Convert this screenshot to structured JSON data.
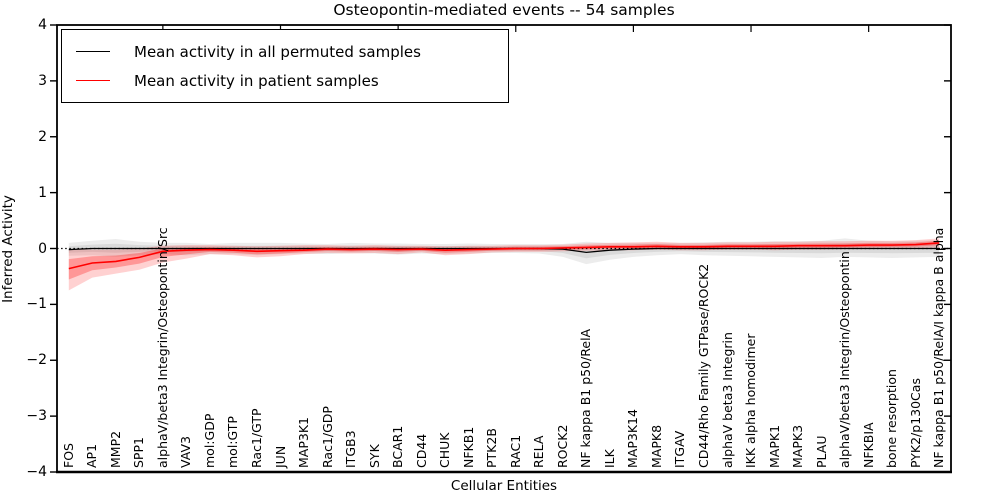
{
  "chart_data": {
    "type": "line",
    "title": "Osteopontin-mediated events -- 54 samples",
    "xlabel": "Cellular Entities",
    "ylabel": "Inferred Activity",
    "ylim": [
      -4,
      4
    ],
    "ytick_labels": [
      "4",
      "3",
      "2",
      "1",
      "0",
      "−1",
      "−2",
      "−3",
      "−4"
    ],
    "yticks": [
      4,
      3,
      2,
      1,
      0,
      -1,
      -2,
      -3,
      -4
    ],
    "grid": false,
    "legend_position": "upper left",
    "zero_line": true,
    "colors": {
      "permuted": "#000000",
      "patient": "#ff0000"
    },
    "categories": [
      "FOS",
      "AP1",
      "MMP2",
      "SPP1",
      "alphaV/beta3 Integrin/Osteopontin/Src",
      "VAV3",
      "mol:GDP",
      "mol:GTP",
      "Rac1/GTP",
      "JUN",
      "MAP3K1",
      "Rac1/GDP",
      "ITGB3",
      "SYK",
      "BCAR1",
      "CD44",
      "CHUK",
      "NFKB1",
      "PTK2B",
      "RAC1",
      "RELA",
      "ROCK2",
      "NF kappa B1 p50/RelA",
      "ILK",
      "MAP3K14",
      "MAPK8",
      "ITGAV",
      "CD44/Rho Family GTPase/ROCK2",
      "alphaV beta3 Integrin",
      "IKK alpha homodimer",
      "MAPK1",
      "MAPK3",
      "PLAU",
      "alphaV/beta3 Integrin/Osteopontin",
      "NFKBIA",
      "bone resorption",
      "PYK2/p130Cas",
      "NF kappa B1 p50/RelA/I kappa B alpha"
    ],
    "series": [
      {
        "name": "Mean activity in all permuted samples",
        "color": "#000000",
        "values": [
          -0.02,
          0.0,
          0.0,
          0.0,
          0.0,
          0.0,
          0.0,
          0.0,
          0.0,
          0.0,
          0.0,
          0.0,
          0.0,
          0.0,
          0.0,
          0.0,
          0.0,
          0.0,
          0.0,
          0.0,
          0.0,
          -0.01,
          -0.07,
          -0.03,
          -0.01,
          0.0,
          0.0,
          0.0,
          0.0,
          0.0,
          0.0,
          0.0,
          0.0,
          0.0,
          0.0,
          0.0,
          0.0,
          0.0
        ]
      },
      {
        "name": "Mean activity in patient samples",
        "color": "#ff0000",
        "values": [
          -0.36,
          -0.26,
          -0.23,
          -0.16,
          -0.05,
          -0.03,
          -0.02,
          -0.03,
          -0.05,
          -0.04,
          -0.03,
          -0.01,
          -0.02,
          -0.01,
          -0.02,
          -0.01,
          -0.03,
          -0.02,
          -0.01,
          0.0,
          0.0,
          0.01,
          0.02,
          0.03,
          0.03,
          0.04,
          0.03,
          0.03,
          0.04,
          0.04,
          0.04,
          0.05,
          0.05,
          0.05,
          0.06,
          0.06,
          0.07,
          0.1
        ]
      }
    ],
    "bands": [
      {
        "name": "permuted-samples-range",
        "color": "#888888",
        "lower": [
          -0.13,
          -0.12,
          -0.15,
          -0.12,
          -0.1,
          -0.12,
          -0.1,
          -0.1,
          -0.12,
          -0.1,
          -0.09,
          -0.1,
          -0.08,
          -0.09,
          -0.11,
          -0.09,
          -0.1,
          -0.09,
          -0.08,
          -0.08,
          -0.09,
          -0.15,
          -0.28,
          -0.2,
          -0.15,
          -0.12,
          -0.1,
          -0.12,
          -0.13,
          -0.14,
          -0.15,
          -0.16,
          -0.17,
          -0.15,
          -0.16,
          -0.17,
          -0.16,
          -0.15
        ],
        "upper": [
          0.1,
          0.14,
          0.17,
          0.12,
          0.1,
          0.1,
          0.08,
          0.1,
          0.1,
          0.1,
          0.09,
          0.08,
          0.1,
          0.09,
          0.09,
          0.08,
          0.08,
          0.09,
          0.08,
          0.08,
          0.08,
          0.08,
          0.12,
          0.1,
          0.1,
          0.1,
          0.1,
          0.11,
          0.12,
          0.12,
          0.13,
          0.13,
          0.14,
          0.18,
          0.14,
          0.13,
          0.14,
          0.15
        ]
      },
      {
        "name": "patient-samples-range",
        "color": "#ff0000",
        "lower": [
          -0.75,
          -0.52,
          -0.45,
          -0.38,
          -0.25,
          -0.18,
          -0.1,
          -0.12,
          -0.16,
          -0.14,
          -0.1,
          -0.08,
          -0.09,
          -0.08,
          -0.1,
          -0.07,
          -0.12,
          -0.1,
          -0.07,
          -0.06,
          -0.06,
          -0.05,
          -0.04,
          -0.03,
          -0.03,
          -0.02,
          -0.03,
          -0.03,
          -0.02,
          -0.02,
          -0.03,
          -0.02,
          -0.02,
          -0.01,
          -0.01,
          0.0,
          0.0,
          0.02
        ],
        "upper": [
          -0.02,
          -0.02,
          -0.02,
          0.0,
          0.05,
          0.06,
          0.06,
          0.05,
          0.04,
          0.05,
          0.06,
          0.06,
          0.05,
          0.06,
          0.05,
          0.05,
          0.04,
          0.05,
          0.05,
          0.06,
          0.06,
          0.07,
          0.09,
          0.1,
          0.11,
          0.12,
          0.1,
          0.1,
          0.11,
          0.11,
          0.12,
          0.12,
          0.13,
          0.13,
          0.14,
          0.14,
          0.15,
          0.18
        ]
      }
    ],
    "top_tick_indices": [
      4,
      9,
      14,
      19,
      24,
      29,
      34
    ]
  }
}
